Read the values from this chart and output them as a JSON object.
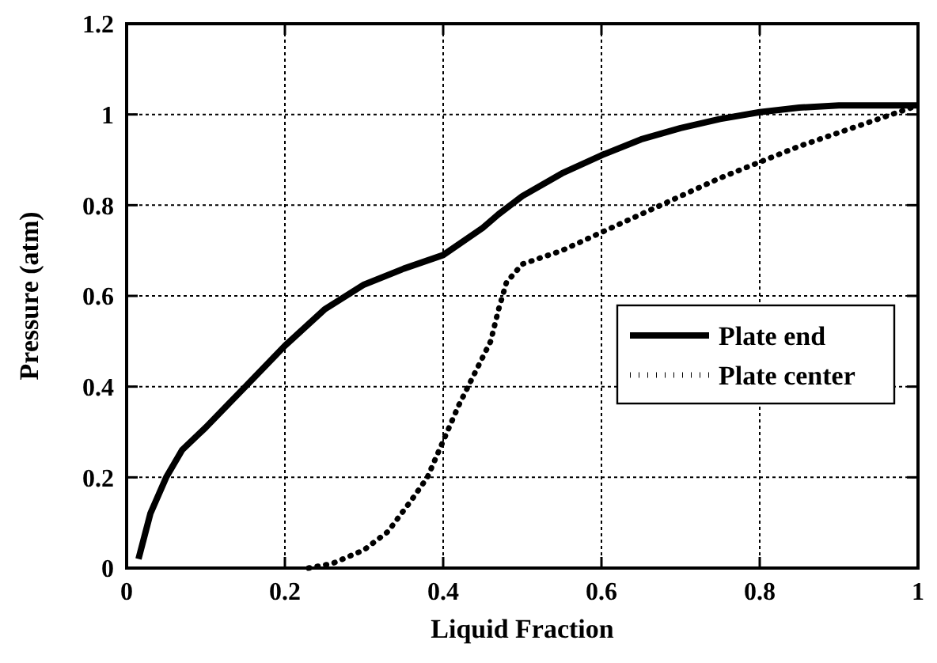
{
  "chart_data": {
    "type": "line",
    "xlabel": "Liquid Fraction",
    "ylabel": "Pressure (atm)",
    "xlim": [
      0,
      1
    ],
    "ylim": [
      0,
      1.2
    ],
    "xticks": [
      0,
      0.2,
      0.4,
      0.6,
      0.8,
      1
    ],
    "yticks": [
      0,
      0.2,
      0.4,
      0.6,
      0.8,
      1,
      1.2
    ],
    "grid": true,
    "legend": "right",
    "series": [
      {
        "name": "Plate end",
        "color": "#000000",
        "line_style": "solid",
        "x": [
          0.015,
          0.03,
          0.05,
          0.07,
          0.1,
          0.15,
          0.2,
          0.25,
          0.3,
          0.35,
          0.4,
          0.45,
          0.47,
          0.5,
          0.55,
          0.6,
          0.65,
          0.7,
          0.75,
          0.8,
          0.85,
          0.9,
          0.95,
          1.0
        ],
        "values": [
          0.02,
          0.12,
          0.2,
          0.26,
          0.31,
          0.4,
          0.49,
          0.57,
          0.625,
          0.66,
          0.69,
          0.75,
          0.78,
          0.82,
          0.87,
          0.91,
          0.945,
          0.97,
          0.99,
          1.005,
          1.015,
          1.02,
          1.02,
          1.02
        ]
      },
      {
        "name": "Plate center",
        "color": "#000000",
        "line_style": "dotted",
        "x": [
          0.23,
          0.26,
          0.3,
          0.33,
          0.36,
          0.38,
          0.4,
          0.42,
          0.44,
          0.46,
          0.47,
          0.48,
          0.5,
          0.55,
          0.6,
          0.65,
          0.7,
          0.75,
          0.8,
          0.85,
          0.9,
          0.95,
          1.0
        ],
        "values": [
          0,
          0.01,
          0.04,
          0.08,
          0.15,
          0.2,
          0.28,
          0.36,
          0.43,
          0.5,
          0.57,
          0.63,
          0.67,
          0.7,
          0.74,
          0.78,
          0.82,
          0.86,
          0.895,
          0.93,
          0.96,
          0.99,
          1.02
        ]
      }
    ]
  }
}
